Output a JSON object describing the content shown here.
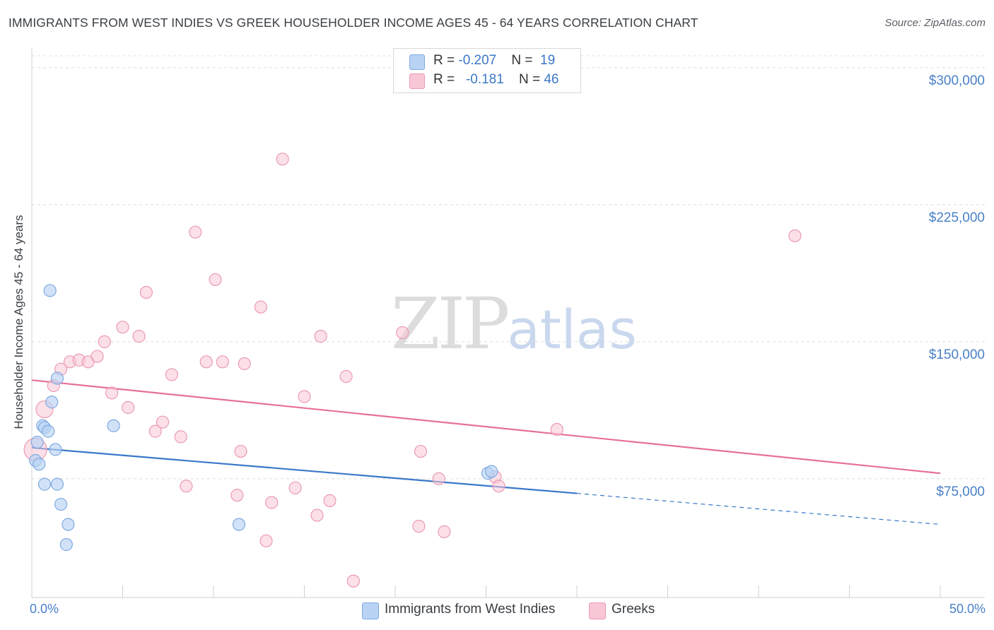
{
  "title": "IMMIGRANTS FROM WEST INDIES VS GREEK HOUSEHOLDER INCOME AGES 45 - 64 YEARS CORRELATION CHART",
  "source": "Source: ZipAtlas.com",
  "watermark": {
    "zip": "ZIP",
    "atlas": "atlas"
  },
  "legend": {
    "rows": [
      {
        "r_label": "R = ",
        "r_value": "-0.207",
        "n_label": "N = ",
        "n_value": "19"
      },
      {
        "r_label": "R = ",
        "r_value": "-0.181",
        "n_label": "N = ",
        "n_value": "46"
      }
    ]
  },
  "bottom_legend": {
    "series_1": "Immigrants from West Indies",
    "series_2": "Greeks"
  },
  "chart_data": {
    "type": "scatter",
    "title": "IMMIGRANTS FROM WEST INDIES VS GREEK HOUSEHOLDER INCOME AGES 45 - 64 YEARS CORRELATION CHART",
    "xlabel": "",
    "ylabel": "Householder Income Ages 45 - 64 years",
    "xlim": [
      0,
      50
    ],
    "ylim": [
      10000,
      310000
    ],
    "x_tick_labels": [
      "0.0%",
      "50.0%"
    ],
    "y_ticks": [
      75000,
      150000,
      225000,
      300000
    ],
    "y_tick_labels": [
      "$75,000",
      "$150,000",
      "$225,000",
      "$300,000"
    ],
    "grid": true,
    "colors": {
      "series_1_fill": "#b9d3f4",
      "series_1_stroke": "#7eaae0",
      "series_1_line": "#3a78c9",
      "series_2_fill": "#f9c6d6",
      "series_2_stroke": "#eb9ab4",
      "series_2_line": "#e5709a"
    },
    "series": [
      {
        "name": "Immigrants from West Indies",
        "points": [
          [
            0.2,
            85000
          ],
          [
            0.3,
            95000
          ],
          [
            0.4,
            83000
          ],
          [
            0.6,
            104000
          ],
          [
            0.7,
            103000
          ],
          [
            0.7,
            72000
          ],
          [
            0.9,
            101000
          ],
          [
            1.0,
            178000
          ],
          [
            1.1,
            117000
          ],
          [
            1.3,
            91000
          ],
          [
            1.4,
            130000
          ],
          [
            1.4,
            72000
          ],
          [
            1.6,
            61000
          ],
          [
            1.9,
            39000
          ],
          [
            2.0,
            50000
          ],
          [
            4.5,
            104000
          ],
          [
            11.4,
            50000
          ],
          [
            25.1,
            78000
          ],
          [
            25.3,
            79000
          ]
        ],
        "trend": {
          "x": [
            0,
            30
          ],
          "y": [
            92000,
            67000
          ]
        },
        "trend_dashed": {
          "x": [
            30,
            50
          ],
          "y": [
            67000,
            50000
          ]
        }
      },
      {
        "name": "Greeks",
        "points": [
          [
            0.2,
            91000
          ],
          [
            0.7,
            113000
          ],
          [
            1.2,
            126000
          ],
          [
            1.6,
            135000
          ],
          [
            2.1,
            139000
          ],
          [
            2.6,
            140000
          ],
          [
            3.1,
            139000
          ],
          [
            3.6,
            142000
          ],
          [
            4.0,
            150000
          ],
          [
            4.4,
            122000
          ],
          [
            5.0,
            158000
          ],
          [
            5.3,
            114000
          ],
          [
            5.9,
            153000
          ],
          [
            6.3,
            177000
          ],
          [
            6.8,
            101000
          ],
          [
            7.2,
            106000
          ],
          [
            7.7,
            132000
          ],
          [
            8.2,
            98000
          ],
          [
            8.5,
            71000
          ],
          [
            9.0,
            210000
          ],
          [
            9.6,
            139000
          ],
          [
            10.1,
            184000
          ],
          [
            10.5,
            139000
          ],
          [
            11.3,
            66000
          ],
          [
            11.5,
            90000
          ],
          [
            11.7,
            138000
          ],
          [
            12.6,
            169000
          ],
          [
            12.9,
            41000
          ],
          [
            13.2,
            62000
          ],
          [
            13.8,
            250000
          ],
          [
            14.5,
            70000
          ],
          [
            15.0,
            120000
          ],
          [
            15.7,
            55000
          ],
          [
            15.9,
            153000
          ],
          [
            16.4,
            63000
          ],
          [
            17.3,
            131000
          ],
          [
            17.7,
            19000
          ],
          [
            20.4,
            155000
          ],
          [
            21.3,
            49000
          ],
          [
            21.4,
            90000
          ],
          [
            22.4,
            75000
          ],
          [
            22.7,
            46000
          ],
          [
            25.5,
            76000
          ],
          [
            25.7,
            71000
          ],
          [
            28.9,
            102000
          ],
          [
            42.0,
            208000
          ]
        ],
        "trend": {
          "x": [
            0,
            50
          ],
          "y": [
            129000,
            78000
          ]
        }
      }
    ]
  }
}
